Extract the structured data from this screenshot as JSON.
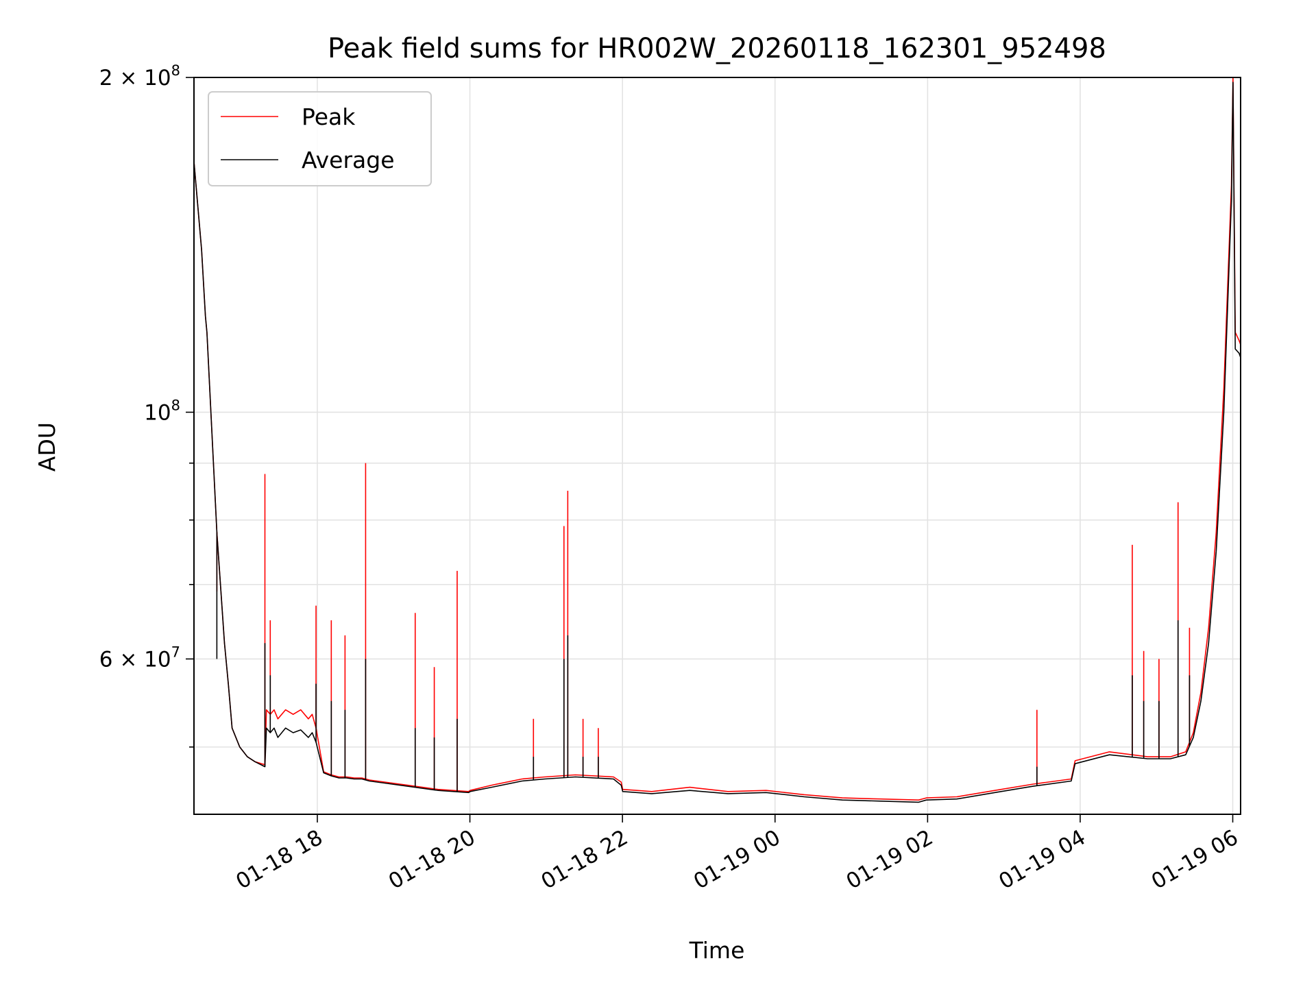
{
  "chart_data": {
    "type": "line",
    "title": "Peak field sums for HR002W_20260118_162301_952498",
    "xlabel": "Time",
    "ylabel": "ADU",
    "yscale": "log",
    "x_unit": "hours since 01-18 16:23",
    "xlim": [
      0,
      13.72
    ],
    "ylim": [
      43500000,
      200000000
    ],
    "x_ticks": [
      {
        "x": 1.617,
        "label": "01-18 18"
      },
      {
        "x": 3.617,
        "label": "01-18 20"
      },
      {
        "x": 5.617,
        "label": "01-18 22"
      },
      {
        "x": 7.617,
        "label": "01-19 00"
      },
      {
        "x": 9.617,
        "label": "01-19 02"
      },
      {
        "x": 11.617,
        "label": "01-19 04"
      },
      {
        "x": 13.617,
        "label": "01-19 06"
      }
    ],
    "y_major_ticks": [
      {
        "y": 60000000,
        "label": "6 × 10^7",
        "mantissa": "6",
        "exp": "7"
      },
      {
        "y": 100000000,
        "label": "10^8",
        "mantissa": "",
        "exp": "8"
      },
      {
        "y": 200000000,
        "label": "2 × 10^8",
        "mantissa": "2",
        "exp": "8"
      }
    ],
    "y_minor_ticks": [
      50000000,
      70000000,
      80000000,
      90000000
    ],
    "legend": {
      "location": "top-left"
    },
    "series": [
      {
        "name": "Peak",
        "color": "#ff0000",
        "x": [
          0,
          0.1,
          0.15,
          0.17,
          0.3,
          0.4,
          0.45,
          0.5,
          0.6,
          0.7,
          0.8,
          0.93,
          0.95,
          1.0,
          1.05,
          1.1,
          1.2,
          1.3,
          1.4,
          1.5,
          1.55,
          1.6,
          1.7,
          1.8,
          1.9,
          2.0,
          2.1,
          2.2,
          2.25,
          2.3,
          2.5,
          2.8,
          3.2,
          3.6,
          3.62,
          3.9,
          4.3,
          4.6,
          5.0,
          5.5,
          5.6,
          5.62,
          6.0,
          6.5,
          7.0,
          7.5,
          8.0,
          8.5,
          9.0,
          9.5,
          9.6,
          10.0,
          10.5,
          11.0,
          11.5,
          11.55,
          12.0,
          12.5,
          12.8,
          13.0,
          13.1,
          13.2,
          13.3,
          13.4,
          13.5,
          13.6,
          13.62,
          13.65,
          13.7,
          13.72
        ],
        "y": [
          168000000,
          140000000,
          122000000,
          118000000,
          78000000,
          62000000,
          57000000,
          52000000,
          50000000,
          49000000,
          48500000,
          48200000,
          54000000,
          53500000,
          54000000,
          53000000,
          54000000,
          53500000,
          54000000,
          53000000,
          53500000,
          52000000,
          47500000,
          47200000,
          47000000,
          47000000,
          46900000,
          46900000,
          46800000,
          46700000,
          46500000,
          46200000,
          45800000,
          45600000,
          45700000,
          46200000,
          46800000,
          47000000,
          47200000,
          47000000,
          46500000,
          45800000,
          45600000,
          46000000,
          45600000,
          45700000,
          45300000,
          45000000,
          44900000,
          44800000,
          45000000,
          45100000,
          45700000,
          46300000,
          46800000,
          48600000,
          49500000,
          49000000,
          49000000,
          49500000,
          51500000,
          56000000,
          64000000,
          78000000,
          105000000,
          160000000,
          200000000,
          118000000,
          116000000,
          115000000
        ]
      },
      {
        "name": "Average",
        "color": "#000000",
        "x": [
          0,
          0.1,
          0.15,
          0.17,
          0.3,
          0.4,
          0.45,
          0.5,
          0.6,
          0.7,
          0.8,
          0.93,
          0.95,
          1.0,
          1.05,
          1.1,
          1.2,
          1.3,
          1.4,
          1.5,
          1.55,
          1.6,
          1.7,
          1.8,
          1.9,
          2.0,
          2.1,
          2.2,
          2.25,
          2.3,
          2.5,
          2.8,
          3.2,
          3.6,
          3.62,
          3.9,
          4.3,
          4.6,
          5.0,
          5.5,
          5.6,
          5.62,
          6.0,
          6.5,
          7.0,
          7.5,
          8.0,
          8.5,
          9.0,
          9.5,
          9.6,
          10.0,
          10.5,
          11.0,
          11.5,
          11.55,
          12.0,
          12.5,
          12.8,
          13.0,
          13.1,
          13.2,
          13.3,
          13.4,
          13.5,
          13.6,
          13.62,
          13.65,
          13.7,
          13.72
        ],
        "y": [
          168000000,
          140000000,
          122000000,
          118000000,
          78000000,
          62000000,
          57000000,
          52000000,
          50000000,
          49000000,
          48500000,
          48000000,
          52000000,
          51500000,
          52000000,
          51000000,
          52000000,
          51500000,
          51800000,
          51000000,
          51500000,
          50500000,
          47400000,
          47100000,
          46900000,
          46900000,
          46800000,
          46800000,
          46700000,
          46600000,
          46400000,
          46100000,
          45700000,
          45500000,
          45600000,
          46000000,
          46600000,
          46800000,
          47000000,
          46800000,
          46200000,
          45600000,
          45400000,
          45700000,
          45400000,
          45500000,
          45100000,
          44800000,
          44700000,
          44600000,
          44800000,
          44900000,
          45500000,
          46100000,
          46600000,
          48300000,
          49200000,
          48800000,
          48800000,
          49200000,
          51000000,
          55000000,
          62000000,
          75000000,
          100000000,
          155000000,
          198000000,
          114000000,
          113000000,
          112000000
        ]
      }
    ],
    "spikes": [
      {
        "x": 0.3,
        "peak": 69000000,
        "avg": 60000000
      },
      {
        "x": 0.93,
        "peak": 88000000,
        "avg": 62000000
      },
      {
        "x": 1.0,
        "peak": 65000000,
        "avg": 58000000
      },
      {
        "x": 1.6,
        "peak": 67000000,
        "avg": 57000000
      },
      {
        "x": 1.8,
        "peak": 65000000,
        "avg": 55000000
      },
      {
        "x": 1.98,
        "peak": 63000000,
        "avg": 54000000
      },
      {
        "x": 2.25,
        "peak": 90000000,
        "avg": 60000000
      },
      {
        "x": 2.9,
        "peak": 66000000,
        "avg": 52000000
      },
      {
        "x": 3.15,
        "peak": 59000000,
        "avg": 51000000
      },
      {
        "x": 3.45,
        "peak": 72000000,
        "avg": 53000000
      },
      {
        "x": 4.45,
        "peak": 53000000,
        "avg": 49000000
      },
      {
        "x": 4.85,
        "peak": 79000000,
        "avg": 60000000
      },
      {
        "x": 4.9,
        "peak": 85000000,
        "avg": 63000000
      },
      {
        "x": 5.1,
        "peak": 53000000,
        "avg": 49000000
      },
      {
        "x": 5.3,
        "peak": 52000000,
        "avg": 49000000
      },
      {
        "x": 11.05,
        "peak": 54000000,
        "avg": 48000000
      },
      {
        "x": 12.3,
        "peak": 76000000,
        "avg": 58000000
      },
      {
        "x": 12.45,
        "peak": 61000000,
        "avg": 55000000
      },
      {
        "x": 12.65,
        "peak": 60000000,
        "avg": 55000000
      },
      {
        "x": 12.9,
        "peak": 83000000,
        "avg": 65000000
      },
      {
        "x": 13.05,
        "peak": 64000000,
        "avg": 58000000
      }
    ]
  }
}
